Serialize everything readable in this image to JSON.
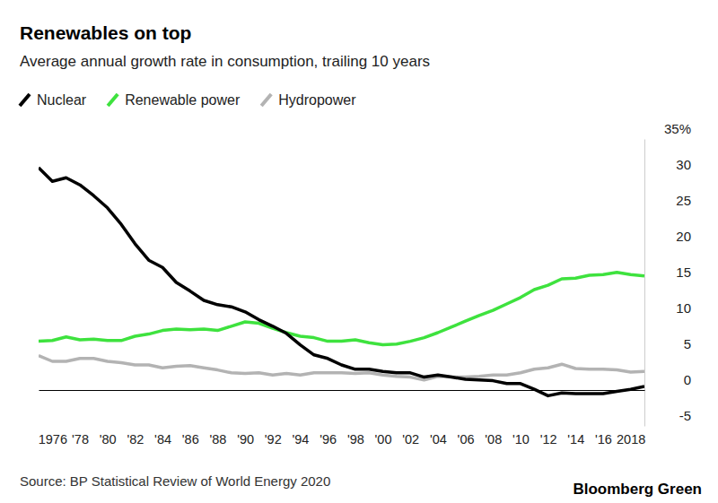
{
  "chart_data": {
    "type": "line",
    "title": "Renewables on top",
    "subtitle": "Average annual growth rate in consumption, trailing 10 years",
    "source": "Source: BP Statistical Review of World Energy 2020",
    "credit": "Bloomberg Green",
    "legend": "top-left",
    "grid": false,
    "x": [
      1975,
      1976,
      1977,
      1978,
      1979,
      1980,
      1981,
      1982,
      1983,
      1984,
      1985,
      1986,
      1987,
      1988,
      1989,
      1990,
      1991,
      1992,
      1993,
      1994,
      1995,
      1996,
      1997,
      1998,
      1999,
      2000,
      2001,
      2002,
      2003,
      2004,
      2005,
      2006,
      2007,
      2008,
      2009,
      2010,
      2011,
      2012,
      2013,
      2014,
      2015,
      2016,
      2017,
      2018,
      2019
    ],
    "xlim": [
      1975,
      2019
    ],
    "xticks": [
      1976,
      {
        "value": 1978,
        "label": "'78"
      },
      {
        "value": 1980,
        "label": "'80"
      },
      {
        "value": 1982,
        "label": "'82"
      },
      {
        "value": 1984,
        "label": "'84"
      },
      {
        "value": 1986,
        "label": "'86"
      },
      {
        "value": 1988,
        "label": "'88"
      },
      {
        "value": 1990,
        "label": "'90"
      },
      {
        "value": 1992,
        "label": "'92"
      },
      {
        "value": 1994,
        "label": "'94"
      },
      {
        "value": 1996,
        "label": "'96"
      },
      {
        "value": 1998,
        "label": "'98"
      },
      {
        "value": 2000,
        "label": "'00"
      },
      {
        "value": 2002,
        "label": "'02"
      },
      {
        "value": 2004,
        "label": "'04"
      },
      {
        "value": 2006,
        "label": "'06"
      },
      {
        "value": 2008,
        "label": "'08"
      },
      {
        "value": 2010,
        "label": "'10"
      },
      {
        "value": 2012,
        "label": "'12"
      },
      {
        "value": 2014,
        "label": "'14"
      },
      {
        "value": 2016,
        "label": "'16"
      },
      2018
    ],
    "ylim": [
      -5,
      35
    ],
    "yticks": [
      -5,
      0,
      5,
      10,
      15,
      20,
      25,
      30,
      {
        "value": 35,
        "label": "35%"
      }
    ],
    "series": [
      {
        "name": "Nuclear",
        "color": "#000000",
        "values": [
          31.0,
          29.1,
          29.6,
          28.6,
          27.1,
          25.4,
          23.1,
          20.4,
          18.1,
          17.1,
          15.0,
          13.8,
          12.5,
          11.9,
          11.6,
          10.9,
          9.8,
          8.9,
          7.9,
          6.3,
          4.9,
          4.4,
          3.5,
          2.9,
          2.9,
          2.6,
          2.4,
          2.4,
          1.8,
          2.1,
          1.8,
          1.5,
          1.4,
          1.3,
          0.9,
          0.9,
          0.1,
          -0.8,
          -0.4,
          -0.5,
          -0.5,
          -0.5,
          -0.2,
          0.1,
          0.5
        ]
      },
      {
        "name": "Renewable power",
        "color": "#3ee23e",
        "values": [
          6.8,
          6.9,
          7.4,
          7.0,
          7.1,
          6.9,
          6.9,
          7.5,
          7.8,
          8.3,
          8.5,
          8.4,
          8.5,
          8.3,
          8.9,
          9.5,
          9.3,
          8.6,
          8.0,
          7.5,
          7.3,
          6.8,
          6.8,
          7.0,
          6.6,
          6.3,
          6.4,
          6.8,
          7.3,
          8.0,
          8.8,
          9.6,
          10.4,
          11.1,
          12.0,
          12.9,
          14.0,
          14.6,
          15.5,
          15.6,
          16.0,
          16.1,
          16.4,
          16.1,
          15.9
        ]
      },
      {
        "name": "Hydropower",
        "color": "#b3b3b3",
        "values": [
          4.8,
          4.0,
          4.0,
          4.4,
          4.4,
          4.0,
          3.8,
          3.5,
          3.5,
          3.1,
          3.3,
          3.4,
          3.1,
          2.8,
          2.4,
          2.3,
          2.4,
          2.1,
          2.3,
          2.1,
          2.4,
          2.4,
          2.4,
          2.3,
          2.4,
          2.1,
          1.9,
          1.8,
          1.4,
          1.9,
          1.8,
          1.8,
          1.9,
          2.1,
          2.1,
          2.4,
          2.9,
          3.1,
          3.6,
          3.0,
          2.9,
          2.9,
          2.8,
          2.5,
          2.6
        ]
      }
    ]
  }
}
